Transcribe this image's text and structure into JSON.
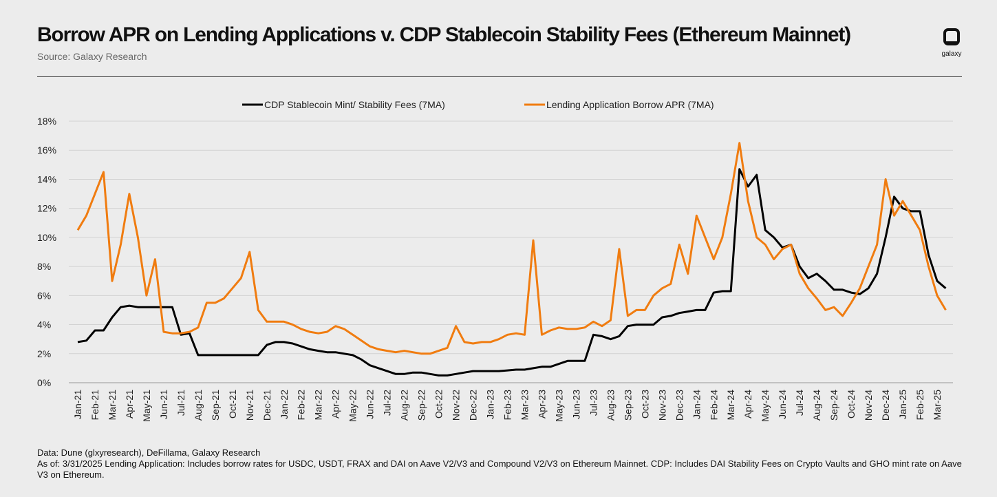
{
  "chart_data": {
    "type": "line",
    "title": "Borrow APR on Lending Applications v. CDP Stablecoin Stability Fees (Ethereum Mainnet)",
    "subtitle": "Source: Galaxy Research",
    "brand": "galaxy",
    "notes": [
      "Data: Dune (glxyresearch), DeFillama, Galaxy Research",
      "As of: 3/31/2025   Lending Application: Includes borrow rates for USDC, USDT, FRAX and DAI on Aave V2/V3 and Compound V2/V3 on Ethereum Mainnet. CDP: Includes DAI Stability Fees on Crypto Vaults and GHO mint rate on Aave V3 on Ethereum."
    ],
    "categories": [
      "Jan-21",
      null,
      "Feb-21",
      null,
      "Mar-21",
      null,
      "Apr-21",
      null,
      "May-21",
      null,
      "Jun-21",
      null,
      "Jul-21",
      null,
      "Aug-21",
      null,
      "Sep-21",
      null,
      "Oct-21",
      null,
      "Nov-21",
      null,
      "Dec-21",
      null,
      "Jan-22",
      null,
      "Feb-22",
      null,
      "Mar-22",
      null,
      "Apr-22",
      null,
      "May-22",
      null,
      "Jun-22",
      null,
      "Jul-22",
      null,
      "Aug-22",
      null,
      "Sep-22",
      null,
      "Oct-22",
      null,
      "Nov-22",
      null,
      "Dec-22",
      null,
      "Jan-23",
      null,
      "Feb-23",
      null,
      "Mar-23",
      null,
      "Apr-23",
      null,
      "May-23",
      null,
      "Jun-23",
      null,
      "Jul-23",
      null,
      "Aug-23",
      null,
      "Sep-23",
      null,
      "Oct-23",
      null,
      "Nov-23",
      null,
      "Dec-23",
      null,
      "Jan-24",
      null,
      "Feb-24",
      null,
      "Mar-24",
      null,
      "Apr-24",
      null,
      "May-24",
      null,
      "Jun-24",
      null,
      "Jul-24",
      null,
      "Aug-24",
      null,
      "Sep-24",
      null,
      "Oct-24",
      null,
      "Nov-24",
      null,
      "Dec-24",
      null,
      "Jan-25",
      null,
      "Feb-25",
      null,
      "Mar-25",
      null
    ],
    "series": [
      {
        "name": "CDP Stablecoin Mint/ Stability Fees (7MA)",
        "color": "#000000",
        "values": [
          2.8,
          2.9,
          3.6,
          3.6,
          4.5,
          5.2,
          5.3,
          5.2,
          5.2,
          5.2,
          5.2,
          5.2,
          3.3,
          3.4,
          1.9,
          1.9,
          1.9,
          1.9,
          1.9,
          1.9,
          1.9,
          1.9,
          2.6,
          2.8,
          2.8,
          2.7,
          2.5,
          2.3,
          2.2,
          2.1,
          2.1,
          2.0,
          1.9,
          1.6,
          1.2,
          1.0,
          0.8,
          0.6,
          0.6,
          0.7,
          0.7,
          0.6,
          0.5,
          0.5,
          0.6,
          0.7,
          0.8,
          0.8,
          0.8,
          0.8,
          0.85,
          0.9,
          0.9,
          1.0,
          1.1,
          1.1,
          1.3,
          1.5,
          1.5,
          1.5,
          3.3,
          3.2,
          3.0,
          3.2,
          3.9,
          4.0,
          4.0,
          4.0,
          4.5,
          4.6,
          4.8,
          4.9,
          5.0,
          5.0,
          6.2,
          6.3,
          6.3,
          14.7,
          13.5,
          14.3,
          10.5,
          10,
          9.3,
          9.5,
          8,
          7.2,
          7.5,
          7,
          6.4,
          6.4,
          6.2,
          6.1,
          6.5,
          7.5,
          10,
          12.8,
          12,
          11.8,
          11.8,
          8.8,
          7,
          6.5
        ]
      },
      {
        "name": "Lending Application Borrow APR (7MA)",
        "color": "#f07c10",
        "values": [
          10.5,
          11.5,
          13,
          14.5,
          7,
          9.5,
          13,
          10,
          6,
          8.5,
          3.5,
          3.4,
          3.4,
          3.5,
          3.8,
          5.5,
          5.5,
          5.8,
          6.5,
          7.2,
          9,
          5,
          4.2,
          4.2,
          4.2,
          4.0,
          3.7,
          3.5,
          3.4,
          3.5,
          3.9,
          3.7,
          3.3,
          2.9,
          2.5,
          2.3,
          2.2,
          2.1,
          2.2,
          2.1,
          2.0,
          2.0,
          2.2,
          2.4,
          3.9,
          2.8,
          2.7,
          2.8,
          2.8,
          3.0,
          3.3,
          3.4,
          3.3,
          9.8,
          3.3,
          3.6,
          3.8,
          3.7,
          3.7,
          3.8,
          4.2,
          3.9,
          4.3,
          9.2,
          4.6,
          5.0,
          5.0,
          6.0,
          6.5,
          6.8,
          9.5,
          7.5,
          11.5,
          10,
          8.5,
          10,
          13,
          16.5,
          12.5,
          10,
          9.5,
          8.5,
          9.2,
          9.5,
          7.5,
          6.5,
          5.8,
          5,
          5.2,
          4.6,
          5.5,
          6.5,
          8,
          9.5,
          14,
          11.5,
          12.5,
          11.5,
          10.5,
          8,
          6,
          5
        ]
      }
    ],
    "ylim": [
      0,
      18
    ],
    "yticks": [
      {
        "value": 0,
        "label": "0%"
      },
      {
        "value": 2,
        "label": "2%"
      },
      {
        "value": 4,
        "label": "4%"
      },
      {
        "value": 6,
        "label": "6%"
      },
      {
        "value": 8,
        "label": "8%"
      },
      {
        "value": 10,
        "label": "10%"
      },
      {
        "value": 12,
        "label": "12%"
      },
      {
        "value": 14,
        "label": "14%"
      },
      {
        "value": 16,
        "label": "16%"
      },
      {
        "value": 18,
        "label": "18%"
      }
    ],
    "grid": true,
    "legend": "top"
  }
}
